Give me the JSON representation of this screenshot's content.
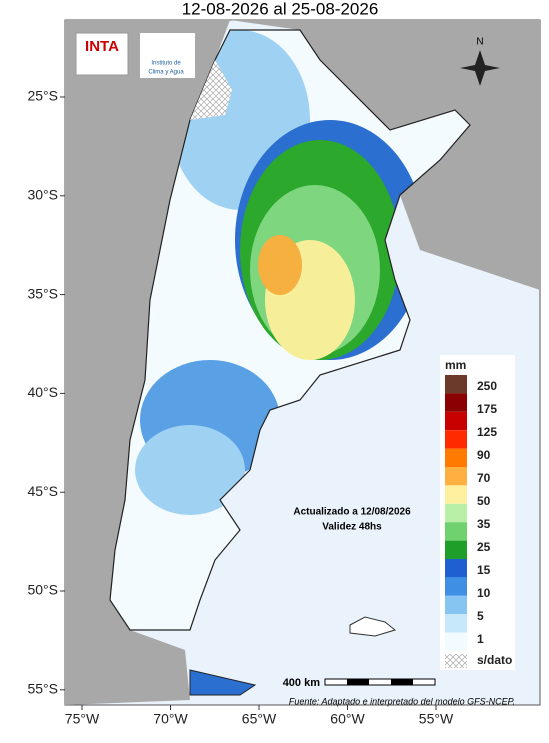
{
  "header": {
    "title": "12-08-2026 al 25-08-2026"
  },
  "logos": {
    "inta": "INTA",
    "institute": "Instituto de",
    "institute_name": "Clima y Agua"
  },
  "compass": "N",
  "latitudes": [
    "25°S",
    "30°S",
    "35°S",
    "40°S",
    "45°S",
    "50°S",
    "55°S"
  ],
  "longitudes": [
    "75°W",
    "70°W",
    "65°W",
    "60°W",
    "55°W"
  ],
  "legend": {
    "title": "mm",
    "labels": [
      "250",
      "175",
      "125",
      "90",
      "70",
      "50",
      "35",
      "25",
      "15",
      "10",
      "5",
      "1"
    ],
    "nodata": "s/dato"
  },
  "notes": {
    "updated": "Actualizado a 12/08/2026",
    "validity": "Validez 48hs"
  },
  "scale": "400 km",
  "source": "Fuente: Adaptado e interpretado del modelo GFS-NCEP."
}
